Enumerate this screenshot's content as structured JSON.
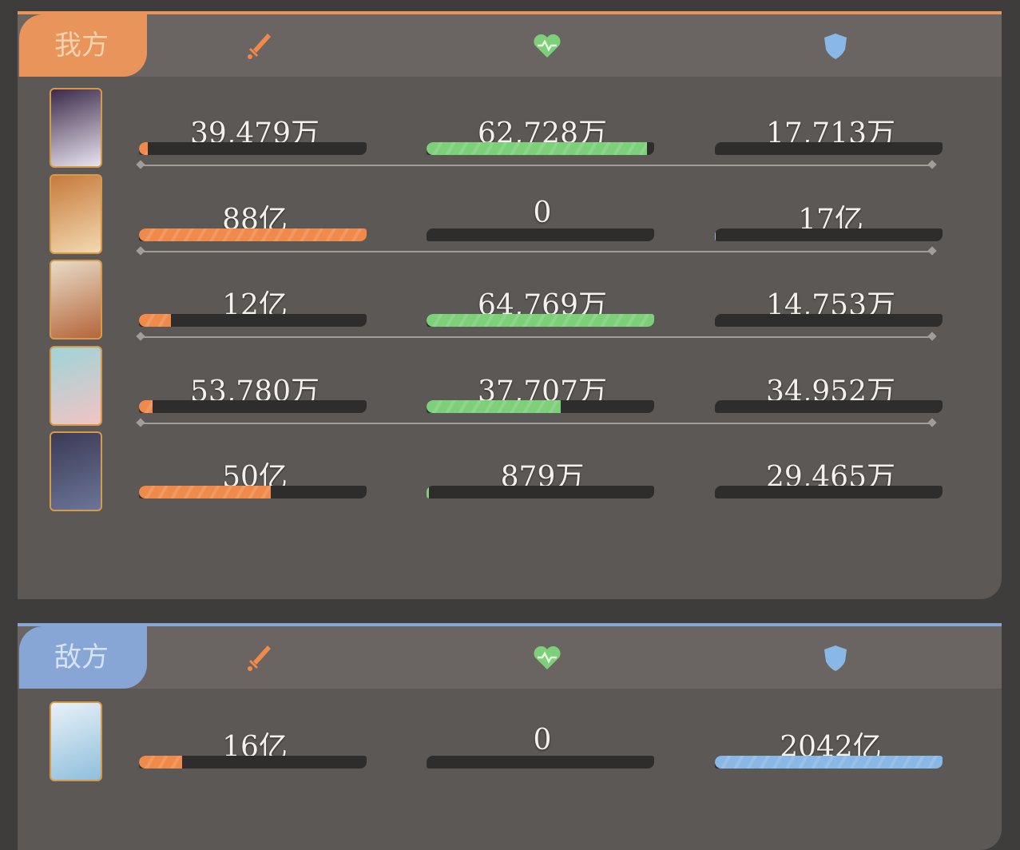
{
  "colors": {
    "damage": "#f08a4b",
    "heal": "#7dcf7a",
    "tank": "#8ab8e6",
    "ally_accent": "#e8945a",
    "enemy_accent": "#87a6d6"
  },
  "header_icons": [
    "sword-icon",
    "heart-icon",
    "shield-icon"
  ],
  "ally": {
    "label": "我方",
    "rows": [
      {
        "damage": "39,479万",
        "damage_fill": 0.04,
        "heal": "62,728万",
        "heal_fill": 0.97,
        "tank": "17,713万",
        "tank_fill": 0,
        "portrait": [
          "#3b2a4a",
          "#e9e4f0"
        ]
      },
      {
        "damage": "88亿",
        "damage_fill": 1.0,
        "heal": "0",
        "heal_fill": 0,
        "tank": "17亿",
        "tank_fill": 0.005,
        "portrait": [
          "#c77a3c",
          "#f3d9b0"
        ]
      },
      {
        "damage": "12亿",
        "damage_fill": 0.14,
        "heal": "64,769万",
        "heal_fill": 1.0,
        "tank": "14,753万",
        "tank_fill": 0,
        "portrait": [
          "#e8dcc8",
          "#b5653a"
        ]
      },
      {
        "damage": "53,780万",
        "damage_fill": 0.06,
        "heal": "37,707万",
        "heal_fill": 0.59,
        "tank": "34,952万",
        "tank_fill": 0,
        "portrait": [
          "#9fd4d8",
          "#f1c4c4"
        ]
      },
      {
        "damage": "50亿",
        "damage_fill": 0.58,
        "heal": "879万",
        "heal_fill": 0.01,
        "tank": "29,465万",
        "tank_fill": 0,
        "portrait": [
          "#3b3a55",
          "#6b7598"
        ]
      }
    ]
  },
  "enemy": {
    "label": "敌方",
    "rows": [
      {
        "damage": "16亿",
        "damage_fill": 0.19,
        "heal": "0",
        "heal_fill": 0,
        "tank": "2042亿",
        "tank_fill": 1.0,
        "portrait": [
          "#e8f1f8",
          "#8fbfdc"
        ]
      }
    ]
  }
}
